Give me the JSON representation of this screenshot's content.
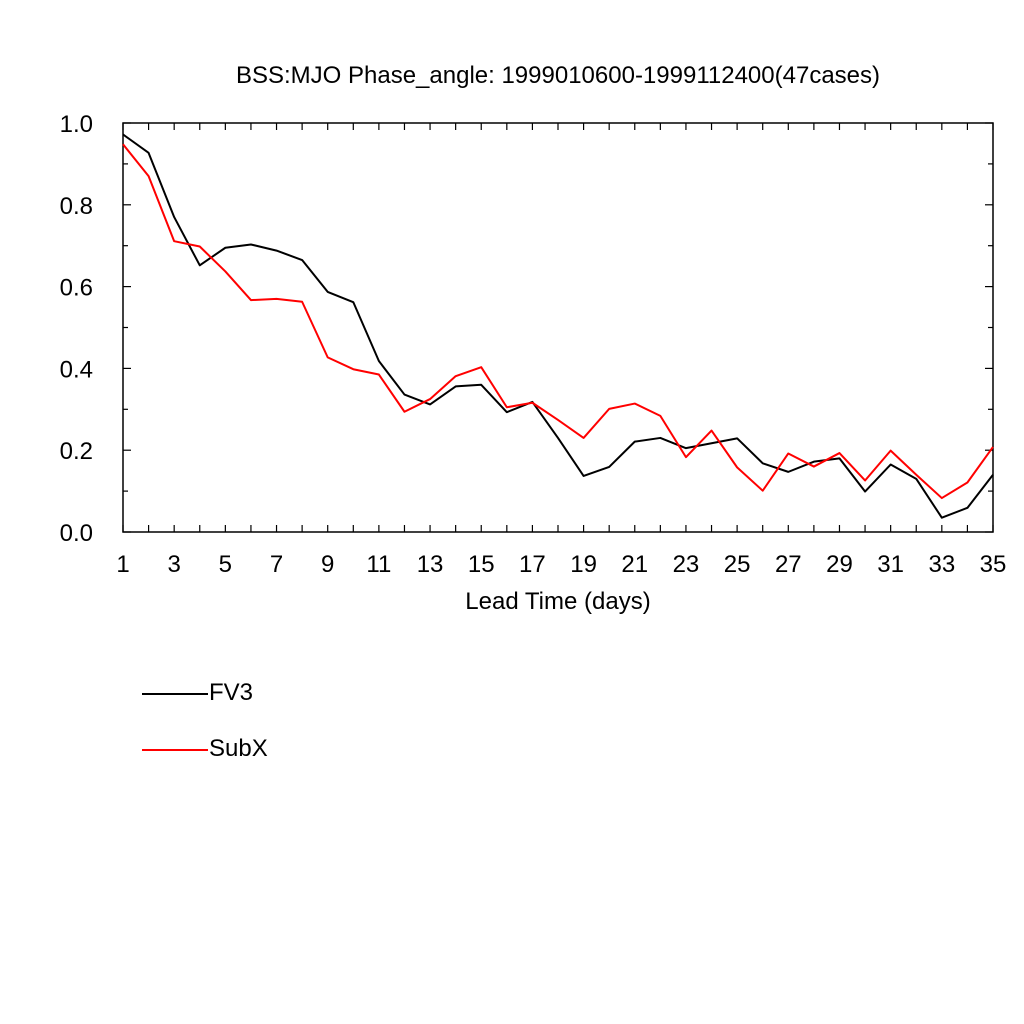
{
  "chart_data": {
    "type": "line",
    "title": "BSS:MJO Phase_angle: 1999010600-1999112400(47cases)",
    "xlabel": "Lead Time (days)",
    "ylabel": "",
    "xlim": [
      1,
      35
    ],
    "ylim": [
      0.0,
      1.0
    ],
    "x_tick_labels": [
      "1",
      "3",
      "5",
      "7",
      "9",
      "11",
      "13",
      "15",
      "17",
      "19",
      "21",
      "23",
      "25",
      "27",
      "29",
      "31",
      "33",
      "35"
    ],
    "y_tick_labels": [
      "0.0",
      "0.2",
      "0.4",
      "0.6",
      "0.8",
      "1.0"
    ],
    "x": [
      1,
      2,
      3,
      4,
      5,
      6,
      7,
      8,
      9,
      10,
      11,
      12,
      13,
      14,
      15,
      16,
      17,
      18,
      19,
      20,
      21,
      22,
      23,
      24,
      25,
      26,
      27,
      28,
      29,
      30,
      31,
      32,
      33,
      34,
      35
    ],
    "series": [
      {
        "name": "FV3",
        "color": "#000000",
        "values": [
          0.972,
          0.927,
          0.77,
          0.652,
          0.695,
          0.703,
          0.688,
          0.665,
          0.587,
          0.562,
          0.418,
          0.336,
          0.312,
          0.356,
          0.36,
          0.293,
          0.318,
          0.23,
          0.137,
          0.159,
          0.221,
          0.23,
          0.205,
          0.217,
          0.229,
          0.168,
          0.147,
          0.172,
          0.18,
          0.099,
          0.165,
          0.13,
          0.035,
          0.059,
          0.14
        ]
      },
      {
        "name": "SubX",
        "color": "#ff0000",
        "values": [
          0.948,
          0.87,
          0.711,
          0.698,
          0.637,
          0.567,
          0.57,
          0.563,
          0.427,
          0.398,
          0.385,
          0.294,
          0.325,
          0.381,
          0.403,
          0.305,
          0.316,
          0.274,
          0.23,
          0.301,
          0.314,
          0.284,
          0.183,
          0.248,
          0.158,
          0.101,
          0.192,
          0.16,
          0.193,
          0.126,
          0.199,
          0.14,
          0.083,
          0.121,
          0.208
        ]
      }
    ],
    "grid": false,
    "legend_position": "bottom-left"
  }
}
